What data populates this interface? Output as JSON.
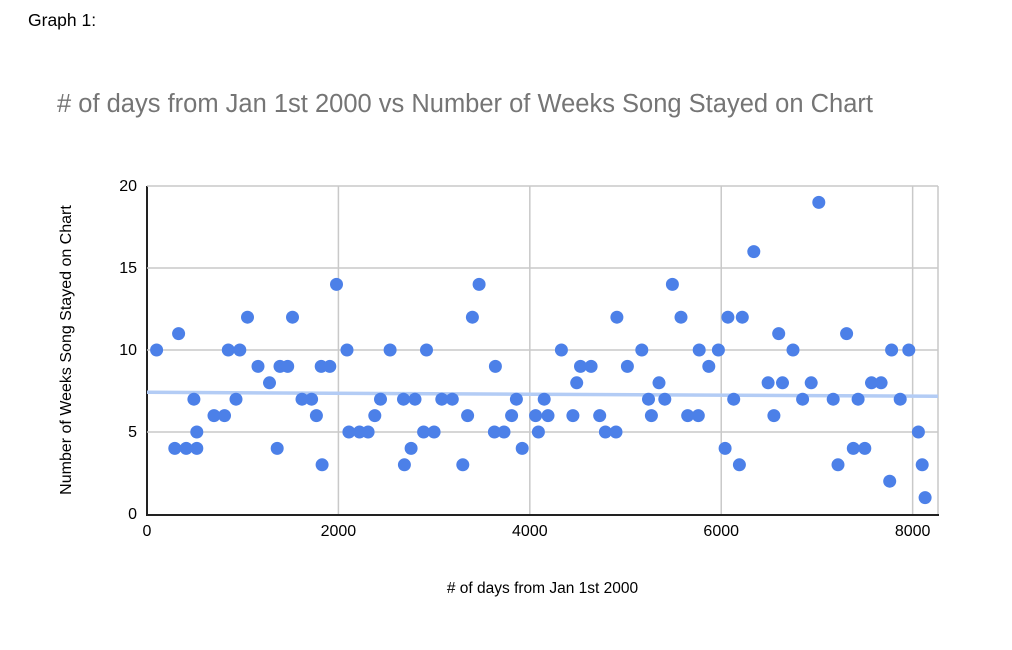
{
  "page": {
    "label": "Graph 1:"
  },
  "chart_data": {
    "type": "scatter",
    "title": "# of days from Jan 1st 2000 vs Number of Weeks Song Stayed on Chart",
    "xlabel": "# of days from Jan 1st 2000",
    "ylabel": "Number of Weeks Song Stayed on Chart",
    "xlim": [
      0,
      8265
    ],
    "ylim": [
      0,
      20
    ],
    "x_ticks": [
      0,
      2000,
      4000,
      6000,
      8000
    ],
    "y_ticks": [
      0,
      5,
      10,
      15,
      20
    ],
    "grid": true,
    "legend": false,
    "colors": {
      "point": "#4c80e8",
      "trendline": "#b3ccf5",
      "gridline": "#c9c9c9",
      "axis": "#222222",
      "title": "#757575"
    },
    "trendline": {
      "x": [
        0,
        8265
      ],
      "y": [
        7.42,
        7.18
      ]
    },
    "points": [
      [
        100,
        10
      ],
      [
        290,
        4
      ],
      [
        330,
        11
      ],
      [
        410,
        4
      ],
      [
        490,
        7
      ],
      [
        520,
        4
      ],
      [
        520,
        5
      ],
      [
        700,
        6
      ],
      [
        810,
        6
      ],
      [
        850,
        10
      ],
      [
        930,
        7
      ],
      [
        970,
        10
      ],
      [
        1050,
        12
      ],
      [
        1160,
        9
      ],
      [
        1280,
        8
      ],
      [
        1360,
        4
      ],
      [
        1390,
        9
      ],
      [
        1470,
        9
      ],
      [
        1520,
        12
      ],
      [
        1620,
        7
      ],
      [
        1720,
        7
      ],
      [
        1770,
        6
      ],
      [
        1820,
        9
      ],
      [
        1830,
        3
      ],
      [
        1910,
        9
      ],
      [
        1980,
        14
      ],
      [
        2090,
        10
      ],
      [
        2110,
        5
      ],
      [
        2220,
        5
      ],
      [
        2310,
        5
      ],
      [
        2380,
        6
      ],
      [
        2440,
        7
      ],
      [
        2540,
        10
      ],
      [
        2680,
        7
      ],
      [
        2690,
        3
      ],
      [
        2760,
        4
      ],
      [
        2800,
        7
      ],
      [
        2890,
        5
      ],
      [
        2920,
        10
      ],
      [
        3000,
        5
      ],
      [
        3080,
        7
      ],
      [
        3190,
        7
      ],
      [
        3300,
        3
      ],
      [
        3350,
        6
      ],
      [
        3400,
        12
      ],
      [
        3470,
        14
      ],
      [
        3630,
        5
      ],
      [
        3640,
        9
      ],
      [
        3730,
        5
      ],
      [
        3810,
        6
      ],
      [
        3860,
        7
      ],
      [
        3920,
        4
      ],
      [
        4060,
        6
      ],
      [
        4090,
        5
      ],
      [
        4150,
        7
      ],
      [
        4190,
        6
      ],
      [
        4330,
        10
      ],
      [
        4450,
        6
      ],
      [
        4490,
        8
      ],
      [
        4530,
        9
      ],
      [
        4640,
        9
      ],
      [
        4730,
        6
      ],
      [
        4790,
        5
      ],
      [
        4900,
        5
      ],
      [
        4910,
        12
      ],
      [
        5020,
        9
      ],
      [
        5170,
        10
      ],
      [
        5240,
        7
      ],
      [
        5270,
        6
      ],
      [
        5350,
        8
      ],
      [
        5410,
        7
      ],
      [
        5490,
        14
      ],
      [
        5580,
        12
      ],
      [
        5650,
        6
      ],
      [
        5760,
        6
      ],
      [
        5770,
        10
      ],
      [
        5870,
        9
      ],
      [
        5970,
        10
      ],
      [
        6040,
        4
      ],
      [
        6070,
        12
      ],
      [
        6130,
        7
      ],
      [
        6190,
        3
      ],
      [
        6220,
        12
      ],
      [
        6340,
        16
      ],
      [
        6490,
        8
      ],
      [
        6550,
        6
      ],
      [
        6600,
        11
      ],
      [
        6640,
        8
      ],
      [
        6750,
        10
      ],
      [
        6850,
        7
      ],
      [
        6940,
        8
      ],
      [
        7020,
        19
      ],
      [
        7170,
        7
      ],
      [
        7220,
        3
      ],
      [
        7310,
        11
      ],
      [
        7380,
        4
      ],
      [
        7430,
        7
      ],
      [
        7500,
        4
      ],
      [
        7570,
        8
      ],
      [
        7670,
        8
      ],
      [
        7760,
        2
      ],
      [
        7780,
        10
      ],
      [
        7870,
        7
      ],
      [
        7960,
        10
      ],
      [
        8060,
        5
      ],
      [
        8100,
        3
      ],
      [
        8130,
        1
      ]
    ]
  }
}
